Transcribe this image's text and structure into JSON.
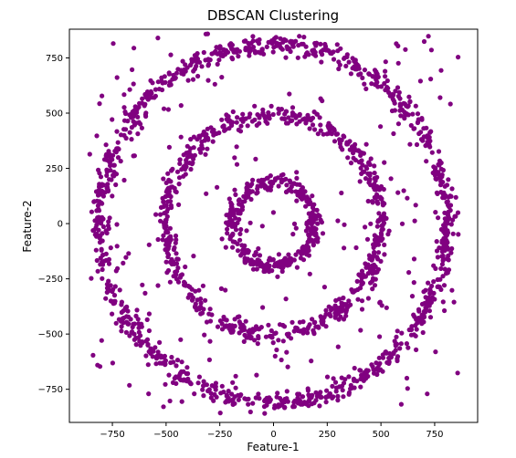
{
  "chart_data": {
    "type": "scatter",
    "title": "DBSCAN Clustering",
    "xlabel": "Feature-1",
    "ylabel": "Feature-2",
    "xlim": [
      -950,
      950
    ],
    "ylim": [
      -900,
      880
    ],
    "xticks": [
      -750,
      -500,
      -250,
      0,
      250,
      500,
      750
    ],
    "yticks": [
      -750,
      -500,
      -250,
      0,
      250,
      500,
      750
    ],
    "xtick_labels": [
      "−750",
      "−500",
      "−250",
      "0",
      "250",
      "500",
      "750"
    ],
    "ytick_labels": [
      "−750",
      "−500",
      "−250",
      "0",
      "250",
      "500",
      "750"
    ],
    "grid": false,
    "legend": "none",
    "marker_color": "#800080",
    "series": [
      {
        "rings": [
          {
            "radius": 190,
            "count": 340,
            "jitter": 28
          },
          {
            "radius": 500,
            "count": 640,
            "jitter": 30
          },
          {
            "radius": 810,
            "count": 980,
            "jitter": 30
          }
        ],
        "noise_points": 230
      }
    ]
  }
}
